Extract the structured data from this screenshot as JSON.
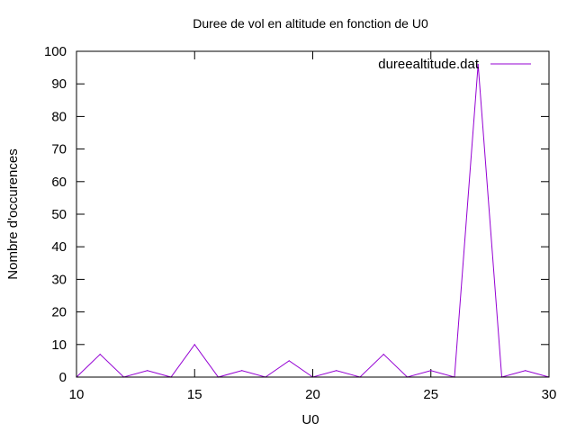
{
  "chart_data": {
    "type": "line",
    "title": "Duree de vol en altitude en fonction de U0",
    "xlabel": "U0",
    "ylabel": "Nombre d'occurences",
    "xlim": [
      10,
      30
    ],
    "ylim": [
      0,
      100
    ],
    "xticks": [
      10,
      15,
      20,
      25,
      30
    ],
    "yticks": [
      0,
      10,
      20,
      30,
      40,
      50,
      60,
      70,
      80,
      90,
      100
    ],
    "grid": false,
    "legend_position": "top-right",
    "series": [
      {
        "name": "dureealtitude.dat",
        "color": "#9400d3",
        "x": [
          10,
          11,
          12,
          13,
          14,
          15,
          16,
          17,
          18,
          19,
          20,
          21,
          22,
          23,
          24,
          25,
          26,
          27,
          28,
          29,
          30
        ],
        "y": [
          0,
          7,
          0,
          2,
          0,
          10,
          0,
          2,
          0,
          5,
          0,
          2,
          0,
          7,
          0,
          2,
          0,
          96,
          0,
          2,
          0
        ]
      }
    ]
  }
}
